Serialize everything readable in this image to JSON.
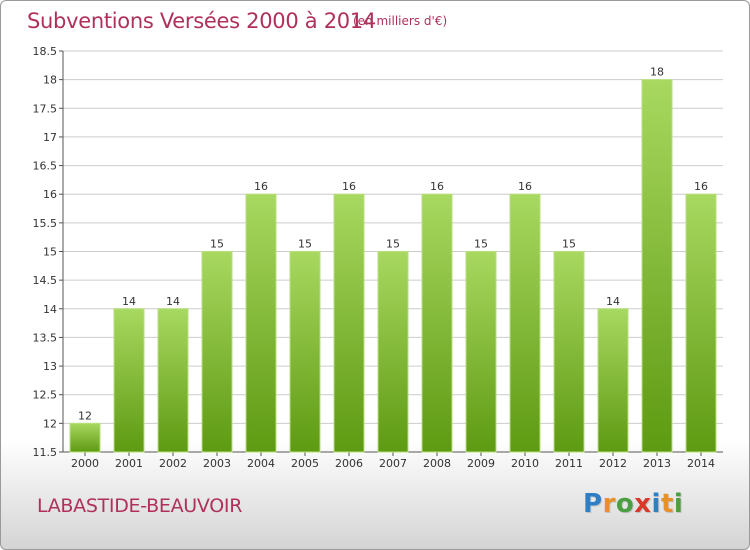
{
  "header": {
    "title": "Subventions Versées 2000 à 2014",
    "subtitle": "(en milliers d'€)"
  },
  "footer": {
    "commune": "LABASTIDE-BEAUVOIR",
    "logo_letters": [
      "P",
      "r",
      "o",
      "x",
      "i",
      "t",
      "i"
    ],
    "logo_colors": [
      "#2f7fc4",
      "#e8902a",
      "#4aa040",
      "#d83a2a",
      "#2f7fc4",
      "#e8902a",
      "#4aa040"
    ]
  },
  "colors": {
    "bar_light": "#a8d860",
    "bar_dark": "#5e9a12",
    "title": "#b0305c",
    "grid": "#cccccc"
  },
  "chart_data": {
    "type": "bar",
    "title": "Subventions Versées 2000 à 2014",
    "subtitle": "(en milliers d'€)",
    "categories": [
      "2000",
      "2001",
      "2002",
      "2003",
      "2004",
      "2005",
      "2006",
      "2007",
      "2008",
      "2009",
      "2010",
      "2011",
      "2012",
      "2013",
      "2014"
    ],
    "values": [
      12,
      14,
      14,
      15,
      16,
      15,
      16,
      15,
      16,
      15,
      16,
      15,
      14,
      18,
      16
    ],
    "ylim": [
      11.5,
      18.5
    ],
    "yticks": [
      "11.5",
      "12",
      "12.5",
      "13",
      "13.5",
      "14",
      "14.5",
      "15",
      "15.5",
      "16",
      "16.5",
      "17",
      "17.5",
      "18",
      "18.5"
    ],
    "grid": true,
    "legend": "none"
  }
}
